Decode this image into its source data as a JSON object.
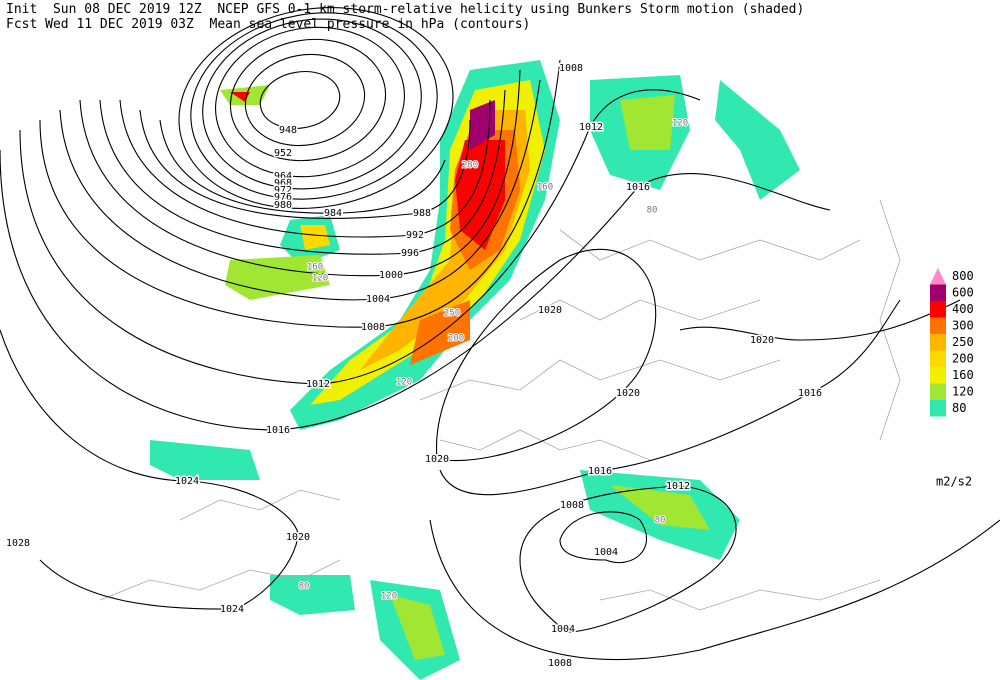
{
  "header": {
    "line1": "Init  Sun 08 DEC 2019 12Z  NCEP GFS 0-1 km storm-relative helicity using Bunkers Storm motion (shaded)",
    "line2": "Fcst Wed 11 DEC 2019 03Z  Mean sea level pressure in hPa (contours)"
  },
  "legend": {
    "levels": [
      800,
      600,
      400,
      300,
      250,
      200,
      160,
      120,
      80
    ],
    "colors": [
      "#ff88c8",
      "#a0006e",
      "#ff0000",
      "#ff7300",
      "#ffb400",
      "#ffd800",
      "#f0f000",
      "#a0e632",
      "#30e8b0"
    ],
    "unit": "m2/s2"
  },
  "contour_labels": [
    948,
    952,
    964,
    968,
    972,
    976,
    980,
    984,
    988,
    992,
    996,
    1000,
    1004,
    1008,
    1012,
    1016,
    1020,
    1024,
    1028,
    1020,
    1024,
    1004,
    1004,
    1008,
    1008,
    1012,
    1016,
    1016,
    1020,
    1020,
    1020,
    1016,
    1012,
    1008
  ],
  "shade_labels": [
    120,
    160,
    250,
    280,
    200,
    120,
    160,
    80,
    120,
    80,
    120,
    80
  ]
}
